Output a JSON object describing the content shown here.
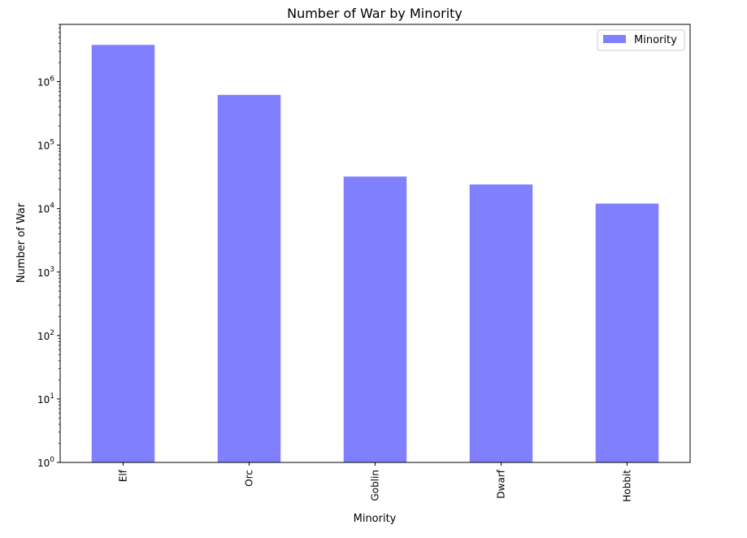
{
  "chart_data": {
    "type": "bar",
    "title": "Number of War by Minority",
    "xlabel": "Minority",
    "ylabel": "Number of War",
    "yscale": "log",
    "ylim": [
      1,
      8000000
    ],
    "categories": [
      "Elf",
      "Orc",
      "Goblin",
      "Dwarf",
      "Hobbit"
    ],
    "series": [
      {
        "name": "Minority",
        "values": [
          3800000,
          620000,
          32000,
          24000,
          12000
        ]
      }
    ],
    "yticks": [
      {
        "base": "10",
        "exp": "0"
      },
      {
        "base": "10",
        "exp": "1"
      },
      {
        "base": "10",
        "exp": "2"
      },
      {
        "base": "10",
        "exp": "3"
      },
      {
        "base": "10",
        "exp": "4"
      },
      {
        "base": "10",
        "exp": "5"
      },
      {
        "base": "10",
        "exp": "6"
      }
    ],
    "legend_position": "top-right",
    "x_tick_rotation": "vertical",
    "grid": false,
    "colors": {
      "bar": "#8080ff",
      "axis": "#000000",
      "background": "#ffffff"
    }
  }
}
